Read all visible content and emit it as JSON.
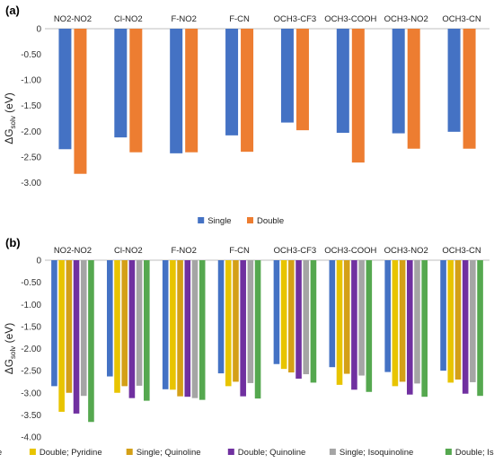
{
  "chart_data": [
    {
      "type": "bar",
      "panel_label": "(a)",
      "title": "",
      "xlabel": "",
      "ylabel_main": "ΔG",
      "ylabel_sub": "solv",
      "ylabel_unit": " (eV)",
      "ylim": [
        -3.5,
        0
      ],
      "yticks": [
        0,
        -0.5,
        -1.0,
        -1.5,
        -2.0,
        -2.5,
        -3.0
      ],
      "ytick_labels": [
        "0",
        "-0.50",
        "-1.00",
        "-1.50",
        "-2.00",
        "-2.50",
        "-3.00"
      ],
      "x_axis_position": "top",
      "categories": [
        "NO2-NO2",
        "Cl-NO2",
        "F-NO2",
        "F-CN",
        "OCH3-CF3",
        "OCH3-COOH",
        "OCH3-NO2",
        "OCH3-CN"
      ],
      "series": [
        {
          "name": "Single",
          "color": "#4472C4",
          "values": [
            -2.35,
            -2.12,
            -2.43,
            -2.08,
            -1.83,
            -2.03,
            -2.04,
            -2.01
          ]
        },
        {
          "name": "Double",
          "color": "#ED7D31",
          "values": [
            -2.83,
            -2.41,
            -2.41,
            -2.4,
            -1.98,
            -2.61,
            -2.34,
            -2.34
          ]
        }
      ],
      "legend_position": "bottom"
    },
    {
      "type": "bar",
      "panel_label": "(b)",
      "title": "",
      "xlabel": "",
      "ylabel_main": "ΔG",
      "ylabel_sub": "solv",
      "ylabel_unit": " (eV)",
      "ylim": [
        -4.0,
        0
      ],
      "yticks": [
        0,
        -0.5,
        -1.0,
        -1.5,
        -2.0,
        -2.5,
        -3.0,
        -3.5,
        -4.0
      ],
      "ytick_labels": [
        "0",
        "-0.50",
        "-1.00",
        "-1.50",
        "-2.00",
        "-2.50",
        "-3.00",
        "-3.50",
        "-4.00"
      ],
      "x_axis_position": "top",
      "categories": [
        "NO2-NO2",
        "Cl-NO2",
        "F-NO2",
        "F-CN",
        "OCH3-CF3",
        "OCH3-COOH",
        "OCH3-NO2",
        "OCH3-CN"
      ],
      "series": [
        {
          "name": "Single; Pyridine",
          "color": "#4472C4",
          "values": [
            -2.85,
            -2.63,
            -2.92,
            -2.56,
            -2.35,
            -2.42,
            -2.53,
            -2.5
          ]
        },
        {
          "name": "Double; Pyridine",
          "color": "#E8C400",
          "values": [
            -3.43,
            -3.0,
            -2.93,
            -2.85,
            -2.46,
            -2.82,
            -2.85,
            -2.77
          ]
        },
        {
          "name": "Single; Quinoline",
          "color": "#D4A017",
          "values": [
            -3.0,
            -2.85,
            -3.08,
            -2.75,
            -2.54,
            -2.57,
            -2.75,
            -2.7
          ]
        },
        {
          "name": "Double; Quinoline",
          "color": "#7030A0",
          "values": [
            -3.47,
            -3.12,
            -3.09,
            -3.08,
            -2.68,
            -2.93,
            -3.04,
            -3.02
          ]
        },
        {
          "name": "Single; Isoquinoline",
          "color": "#A5A5A5",
          "values": [
            -3.07,
            -2.84,
            -3.12,
            -2.78,
            -2.58,
            -2.61,
            -2.79,
            -2.76
          ]
        },
        {
          "name": "Double; Isoquinoline",
          "color": "#55A84F",
          "values": [
            -3.66,
            -3.18,
            -3.16,
            -3.13,
            -2.77,
            -2.98,
            -3.09,
            -3.07
          ]
        }
      ],
      "legend_position": "bottom"
    }
  ]
}
